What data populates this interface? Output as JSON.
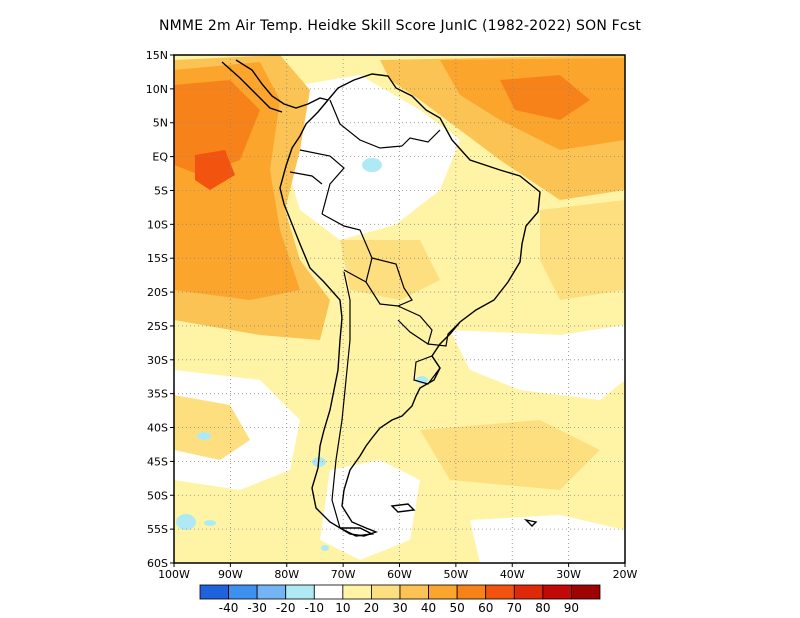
{
  "title": "NMME  2m Air Temp. Heidke Skill Score JunIC (1982-2022) SON Fcst",
  "map": {
    "lon_range": [
      -100,
      -20
    ],
    "lat_range": [
      -60,
      15
    ],
    "lat_ticks": [
      {
        "value": 15,
        "label": "15N"
      },
      {
        "value": 10,
        "label": "10N"
      },
      {
        "value": 5,
        "label": "5N"
      },
      {
        "value": 0,
        "label": "EQ"
      },
      {
        "value": -5,
        "label": "5S"
      },
      {
        "value": -10,
        "label": "10S"
      },
      {
        "value": -15,
        "label": "15S"
      },
      {
        "value": -20,
        "label": "20S"
      },
      {
        "value": -25,
        "label": "25S"
      },
      {
        "value": -30,
        "label": "30S"
      },
      {
        "value": -35,
        "label": "35S"
      },
      {
        "value": -40,
        "label": "40S"
      },
      {
        "value": -45,
        "label": "45S"
      },
      {
        "value": -50,
        "label": "50S"
      },
      {
        "value": -55,
        "label": "55S"
      },
      {
        "value": -60,
        "label": "60S"
      }
    ],
    "lon_ticks": [
      {
        "value": -100,
        "label": "100W"
      },
      {
        "value": -90,
        "label": "90W"
      },
      {
        "value": -80,
        "label": "80W"
      },
      {
        "value": -70,
        "label": "70W"
      },
      {
        "value": -60,
        "label": "60W"
      },
      {
        "value": -50,
        "label": "50W"
      },
      {
        "value": -40,
        "label": "40W"
      },
      {
        "value": -30,
        "label": "30W"
      },
      {
        "value": -20,
        "label": "20W"
      }
    ],
    "grid": "dotted"
  },
  "colorbar": {
    "colors": [
      "#1f62e0",
      "#3d8ff0",
      "#74b4f4",
      "#afeaf4",
      "#ffffff",
      "#fff4a6",
      "#fddf80",
      "#fbc254",
      "#fba52c",
      "#f8821a",
      "#f25410",
      "#e0280a",
      "#c30808",
      "#9c0404"
    ],
    "labels": [
      "-40",
      "-30",
      "-20",
      "-10",
      "10",
      "20",
      "30",
      "40",
      "50",
      "60",
      "70",
      "80",
      "90"
    ]
  }
}
